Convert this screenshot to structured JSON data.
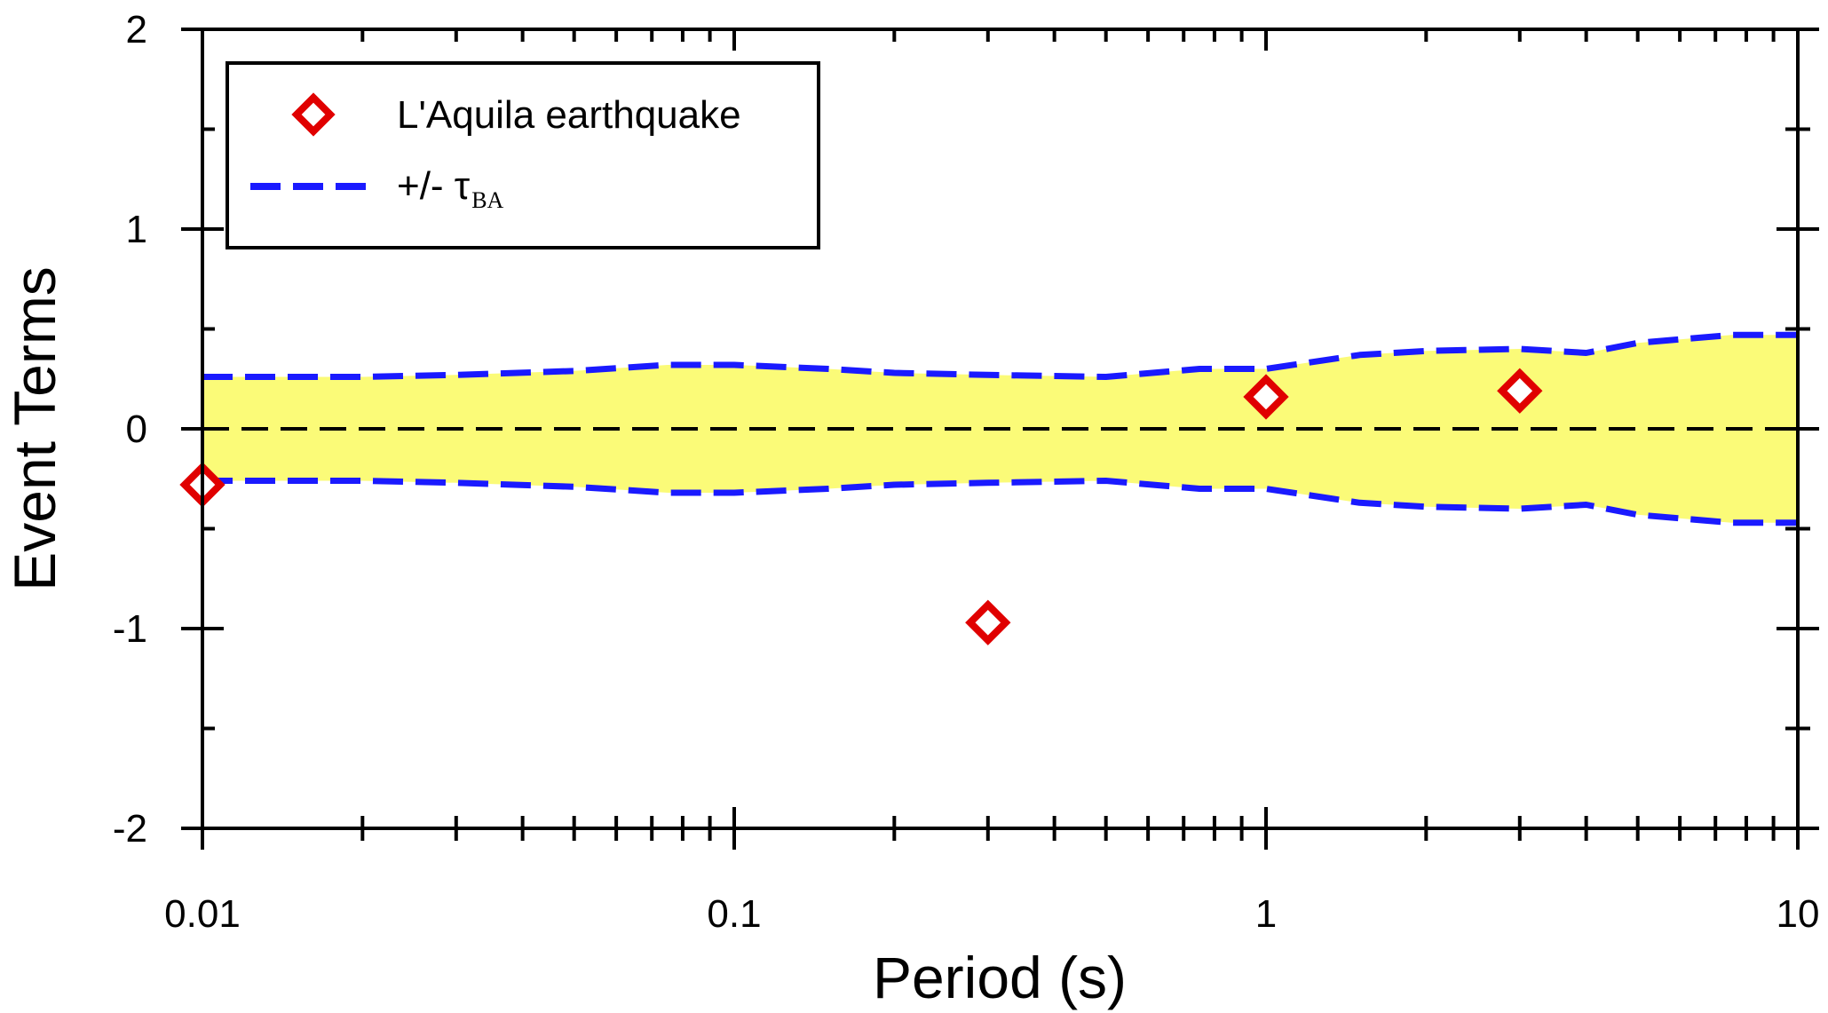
{
  "chart_data": {
    "type": "scatter",
    "xlabel": "Period (s)",
    "ylabel": "Event Terms",
    "xscale": "log",
    "xlim": [
      0.01,
      10
    ],
    "ylim": [
      -2,
      2
    ],
    "x_tick_labels": [
      "0.01",
      "0.1",
      "1",
      "10"
    ],
    "y_tick_labels": [
      "-2",
      "-1",
      "0",
      "1",
      "2"
    ],
    "x_ticks": [
      0.01,
      0.1,
      1,
      10
    ],
    "y_ticks": [
      -2,
      -1,
      0,
      1,
      2
    ],
    "grid": false,
    "legend_position": "top-left",
    "series": [
      {
        "name": "L'Aquila earthquake",
        "kind": "scatter",
        "marker": "diamond",
        "color": "#e00000",
        "points": [
          {
            "x": 0.01,
            "y": -0.28
          },
          {
            "x": 0.3,
            "y": -0.97
          },
          {
            "x": 1.0,
            "y": 0.16
          },
          {
            "x": 3.0,
            "y": 0.19
          }
        ]
      },
      {
        "name": "+/- τBA",
        "label_main": "+/- τ",
        "label_sub": "BA",
        "kind": "band",
        "color": "#1a1aff",
        "fill_color": "#fbfb78",
        "x": [
          0.01,
          0.02,
          0.03,
          0.05,
          0.075,
          0.1,
          0.15,
          0.2,
          0.3,
          0.5,
          0.75,
          1.0,
          1.5,
          2.0,
          3.0,
          4.0,
          5.0,
          7.5,
          10.0
        ],
        "upper": [
          0.26,
          0.26,
          0.27,
          0.29,
          0.32,
          0.32,
          0.3,
          0.28,
          0.27,
          0.26,
          0.3,
          0.3,
          0.37,
          0.39,
          0.4,
          0.38,
          0.43,
          0.47,
          0.47
        ],
        "lower": [
          -0.26,
          -0.26,
          -0.27,
          -0.29,
          -0.32,
          -0.32,
          -0.3,
          -0.28,
          -0.27,
          -0.26,
          -0.3,
          -0.3,
          -0.37,
          -0.39,
          -0.4,
          -0.38,
          -0.43,
          -0.47,
          -0.47
        ]
      },
      {
        "kind": "reference_line",
        "y": 0,
        "color": "#000000",
        "style": "dashed"
      }
    ]
  }
}
